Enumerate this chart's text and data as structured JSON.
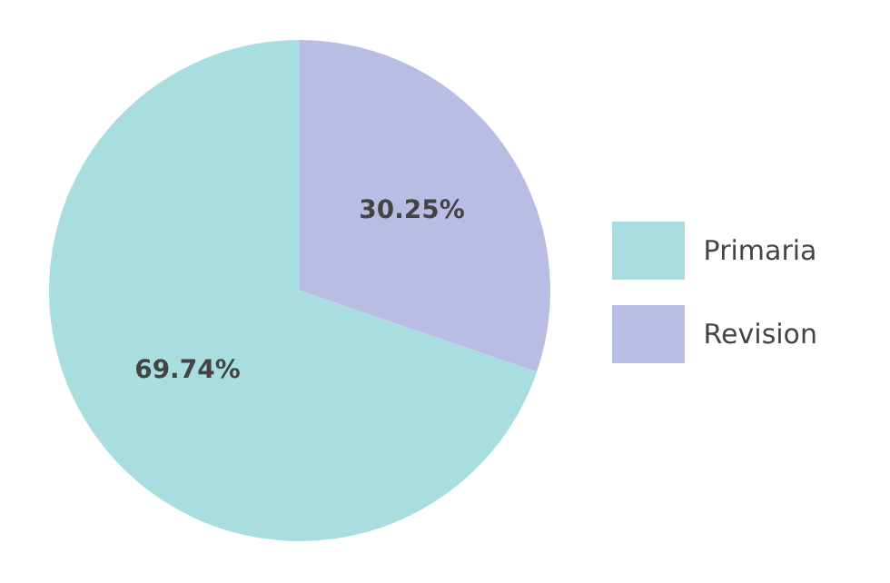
{
  "chart_data": {
    "type": "pie",
    "categories": [
      "Primaria",
      "Revision"
    ],
    "values": [
      69.74,
      30.25
    ],
    "colors": [
      "#a8dedf",
      "#babde3"
    ],
    "value_labels": [
      "69.74%",
      "30.25%"
    ],
    "legend": "right"
  }
}
